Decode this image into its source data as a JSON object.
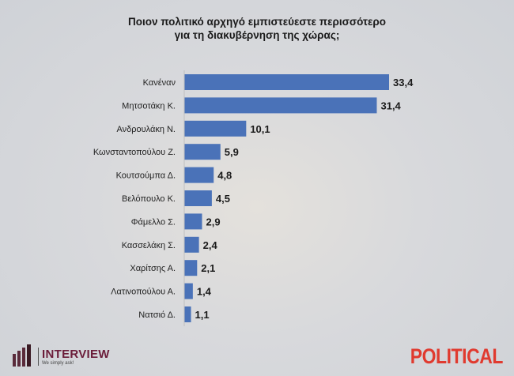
{
  "chart_data": {
    "type": "bar",
    "orientation": "horizontal",
    "title": "Ποιον πολιτικό αρχηγό εμπιστεύεστε περισσότερο\nγια τη διακυβέρνηση της χώρας;",
    "title_lines": [
      "Ποιον πολιτικό αρχηγό εμπιστεύεστε περισσότερο",
      "για τη διακυβέρνηση της χώρας;"
    ],
    "categories": [
      "Κανέναν",
      "Μητσοτάκη Κ.",
      "Ανδρουλάκη Ν.",
      "Κωνσταντοπούλου Ζ.",
      "Κουτσούμπα Δ.",
      "Βελόπουλο Κ.",
      "Φάμελλο Σ.",
      "Κασσελάκη Σ.",
      "Χαρίτσης Α.",
      "Λατινοπούλου Α.",
      "Νατσιό Δ."
    ],
    "values": [
      33.4,
      31.4,
      10.1,
      5.9,
      4.8,
      4.5,
      2.9,
      2.4,
      2.1,
      1.4,
      1.1
    ],
    "data_labels": [
      "33,4",
      "31,4",
      "10,1",
      "5,9",
      "4,8",
      "4,5",
      "2,9",
      "2,4",
      "2,1",
      "1,4",
      "1,1"
    ],
    "xlim": [
      0,
      33.4
    ],
    "grid": false,
    "bar_color": "#4a72b8"
  },
  "logos": {
    "left_name": "INTERVIEW",
    "left_tagline": "We simply ask!",
    "right_name": "POLITICAL"
  }
}
